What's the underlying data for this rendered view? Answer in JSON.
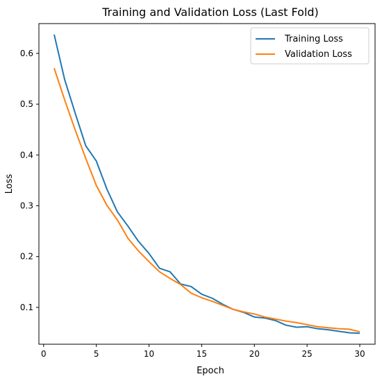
{
  "chart_data": {
    "type": "line",
    "title": "Training and Validation Loss (Last Fold)",
    "xlabel": "Epoch",
    "ylabel": "Loss",
    "xlim": [
      -0.45,
      31.45
    ],
    "ylim": [
      0.0275,
      0.6586
    ],
    "xticks": [
      0,
      5,
      10,
      15,
      20,
      25,
      30
    ],
    "yticks": [
      0.1,
      0.2,
      0.3,
      0.4,
      0.5,
      0.6
    ],
    "grid": false,
    "legend": "top-right",
    "x": [
      1,
      2,
      3,
      4,
      5,
      6,
      7,
      8,
      9,
      10,
      11,
      12,
      13,
      14,
      15,
      16,
      17,
      18,
      19,
      20,
      21,
      22,
      23,
      24,
      25,
      26,
      27,
      28,
      29,
      30
    ],
    "series": [
      {
        "name": "Training Loss",
        "color": "#1f77b4",
        "values": [
          0.637,
          0.548,
          0.482,
          0.418,
          0.388,
          0.333,
          0.288,
          0.26,
          0.23,
          0.206,
          0.177,
          0.17,
          0.146,
          0.141,
          0.126,
          0.118,
          0.106,
          0.096,
          0.09,
          0.081,
          0.079,
          0.074,
          0.065,
          0.061,
          0.062,
          0.058,
          0.056,
          0.053,
          0.05,
          0.049
        ]
      },
      {
        "name": "Validation Loss",
        "color": "#ff7f0e",
        "values": [
          0.571,
          0.508,
          0.449,
          0.393,
          0.34,
          0.301,
          0.272,
          0.236,
          0.211,
          0.19,
          0.17,
          0.157,
          0.145,
          0.128,
          0.119,
          0.112,
          0.104,
          0.096,
          0.091,
          0.087,
          0.081,
          0.077,
          0.073,
          0.07,
          0.066,
          0.062,
          0.06,
          0.058,
          0.057,
          0.052
        ]
      }
    ]
  }
}
